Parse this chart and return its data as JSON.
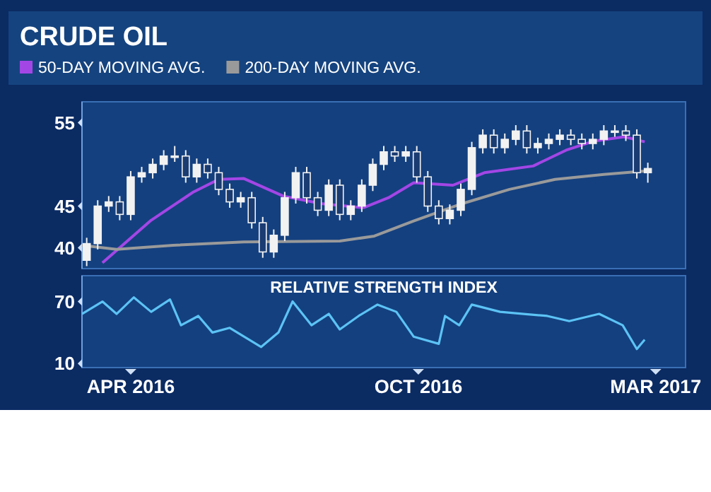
{
  "chart_data": [
    {
      "type": "candlestick",
      "title": "CRUDE OIL",
      "color": "#f2f2f2",
      "legend": "top left",
      "tick_labels": "y",
      "xlim": [
        "2016-03-01",
        "2017-03-20"
      ],
      "ylim": [
        37.5,
        57.5
      ],
      "yticks": [
        40,
        45,
        55
      ],
      "x": [
        "2016-03-04",
        "2016-03-11",
        "2016-03-18",
        "2016-03-25",
        "2016-04-01",
        "2016-04-08",
        "2016-04-15",
        "2016-04-22",
        "2016-04-29",
        "2016-05-06",
        "2016-05-13",
        "2016-05-20",
        "2016-05-27",
        "2016-06-03",
        "2016-06-10",
        "2016-06-17",
        "2016-06-24",
        "2016-07-01",
        "2016-07-08",
        "2016-07-15",
        "2016-07-22",
        "2016-07-29",
        "2016-08-05",
        "2016-08-12",
        "2016-08-19",
        "2016-08-26",
        "2016-09-02",
        "2016-09-09",
        "2016-09-16",
        "2016-09-23",
        "2016-09-30",
        "2016-10-07",
        "2016-10-14",
        "2016-10-21",
        "2016-10-28",
        "2016-11-04",
        "2016-11-11",
        "2016-11-18",
        "2016-11-25",
        "2016-12-02",
        "2016-12-09",
        "2016-12-16",
        "2016-12-23",
        "2016-12-30",
        "2017-01-06",
        "2017-01-13",
        "2017-01-20",
        "2017-01-27",
        "2017-02-03",
        "2017-02-10",
        "2017-02-17",
        "2017-02-24"
      ],
      "ohlc": [
        [
          38.5,
          41.2,
          37.8,
          40.5
        ],
        [
          40.5,
          45.7,
          39.8,
          45
        ],
        [
          45,
          46.2,
          44.3,
          45.5
        ],
        [
          45.5,
          46.2,
          43.3,
          44
        ],
        [
          44,
          49.2,
          43.3,
          48.5
        ],
        [
          48.5,
          49.7,
          47.8,
          49
        ],
        [
          49,
          50.7,
          48.3,
          50
        ],
        [
          50,
          51.7,
          49.3,
          51
        ],
        [
          51,
          52.2,
          50.3,
          51
        ],
        [
          51,
          51.7,
          47.8,
          48.5
        ],
        [
          48.5,
          50.7,
          47.8,
          50
        ],
        [
          50,
          50.7,
          48.3,
          49
        ],
        [
          49,
          49.7,
          46.3,
          47
        ],
        [
          47,
          47.7,
          44.8,
          45.5
        ],
        [
          45.5,
          46.7,
          44.8,
          46
        ],
        [
          46,
          46.7,
          42.3,
          43
        ],
        [
          43,
          43.7,
          38.8,
          39.5
        ],
        [
          39.5,
          42.2,
          38.8,
          41.5
        ],
        [
          41.5,
          46.7,
          40.8,
          46
        ],
        [
          46,
          49.7,
          45.3,
          49
        ],
        [
          49,
          49.7,
          45.3,
          46
        ],
        [
          46,
          46.7,
          43.8,
          44.5
        ],
        [
          44.5,
          48.2,
          43.8,
          47.5
        ],
        [
          47.5,
          48.2,
          43.3,
          44
        ],
        [
          44,
          45.7,
          43.3,
          45
        ],
        [
          45,
          48.2,
          44.3,
          47.5
        ],
        [
          47.5,
          50.7,
          46.8,
          50
        ],
        [
          50,
          52.2,
          49.3,
          51.5
        ],
        [
          51.5,
          52.2,
          50.3,
          51
        ],
        [
          51,
          52.2,
          50.3,
          51.5
        ],
        [
          51.5,
          52.2,
          47.8,
          48.5
        ],
        [
          48.5,
          49.2,
          44.3,
          45
        ],
        [
          45,
          45.7,
          42.8,
          43.5
        ],
        [
          43.5,
          45.2,
          42.8,
          44.5
        ],
        [
          44.5,
          47.7,
          43.8,
          47
        ],
        [
          47,
          52.7,
          46.3,
          52
        ],
        [
          52,
          54.2,
          51.3,
          53.5
        ],
        [
          53.5,
          54.2,
          51.3,
          52
        ],
        [
          52,
          53.7,
          51.3,
          53
        ],
        [
          53,
          54.7,
          52.3,
          54
        ],
        [
          54,
          54.7,
          51.3,
          52
        ],
        [
          52,
          53.2,
          51.3,
          52.5
        ],
        [
          52.5,
          53.7,
          51.8,
          53
        ],
        [
          53,
          54.2,
          52.3,
          53.5
        ],
        [
          53.5,
          54.2,
          52.3,
          53
        ],
        [
          53,
          53.7,
          51.8,
          52.5
        ],
        [
          52.5,
          53.7,
          51.8,
          53
        ],
        [
          53,
          54.7,
          52.3,
          54
        ],
        [
          54,
          54.7,
          53.3,
          54
        ],
        [
          54,
          54.7,
          52.8,
          53.5
        ],
        [
          53.5,
          54.2,
          48.3,
          49
        ],
        [
          49,
          50.2,
          47.8,
          49.5
        ]
      ],
      "series": [
        {
          "type": "line",
          "name": "50-DAY MOVING AVG.",
          "color": "#a346e6",
          "x": [
            "2016-03-14",
            "2016-04-14",
            "2016-05-11",
            "2016-05-27",
            "2016-06-12",
            "2016-07-07",
            "2016-07-31",
            "2016-08-27",
            "2016-09-12",
            "2016-09-28",
            "2016-10-23",
            "2016-11-12",
            "2016-12-13",
            "2017-01-03",
            "2017-01-21",
            "2017-02-09",
            "2017-02-22"
          ],
          "values": [
            38.2,
            43.3,
            46.7,
            48.2,
            48.3,
            46.2,
            45.3,
            44.8,
            46,
            47.8,
            47.5,
            49,
            49.8,
            51.7,
            52.8,
            53.3,
            52.7
          ]
        },
        {
          "type": "line",
          "name": "200-DAY MOVING AVG.",
          "color": "#9a9a9a",
          "x": [
            "2016-03-01",
            "2016-03-23",
            "2016-04-28",
            "2016-06-12",
            "2016-08-12",
            "2016-09-03",
            "2016-09-28",
            "2016-10-29",
            "2016-11-28",
            "2016-12-27",
            "2017-01-27",
            "2017-02-22"
          ],
          "values": [
            40.3,
            39.8,
            40.3,
            40.7,
            40.8,
            41.4,
            43.2,
            45.3,
            47,
            48.2,
            48.8,
            49.2
          ]
        }
      ]
    },
    {
      "type": "line",
      "title": "RELATIVE STRENGTH INDEX",
      "xlim": [
        "2016-03-01",
        "2017-03-20"
      ],
      "xticks": [
        {
          "value": "2016-04-01",
          "label": "APR 2016"
        },
        {
          "value": "2016-10-01",
          "label": "OCT 2016"
        },
        {
          "value": "2017-03-01",
          "label": "MAR 2017"
        }
      ],
      "ylim": [
        6,
        95
      ],
      "yticks": [
        10,
        70
      ],
      "series": [
        {
          "color": "#5cc3f5",
          "x": [
            "2016-03-01",
            "2016-03-14",
            "2016-03-23",
            "2016-04-03",
            "2016-04-14",
            "2016-04-26",
            "2016-05-03",
            "2016-05-14",
            "2016-05-23",
            "2016-06-03",
            "2016-06-23",
            "2016-07-04",
            "2016-07-13",
            "2016-07-25",
            "2016-08-05",
            "2016-08-12",
            "2016-08-24",
            "2016-09-05",
            "2016-09-17",
            "2016-09-28",
            "2016-10-14",
            "2016-10-18",
            "2016-10-27",
            "2016-11-04",
            "2016-11-22",
            "2016-12-07",
            "2016-12-22",
            "2017-01-05",
            "2017-01-24",
            "2017-02-08",
            "2017-02-17",
            "2017-02-22"
          ],
          "values": [
            58,
            70,
            58,
            74,
            60,
            72,
            47,
            56,
            40,
            44.5,
            26,
            40,
            70,
            47,
            58,
            43,
            56,
            67,
            60,
            36,
            29,
            56,
            47,
            67,
            60,
            58,
            56,
            51,
            58,
            47,
            24,
            33
          ]
        }
      ]
    }
  ]
}
